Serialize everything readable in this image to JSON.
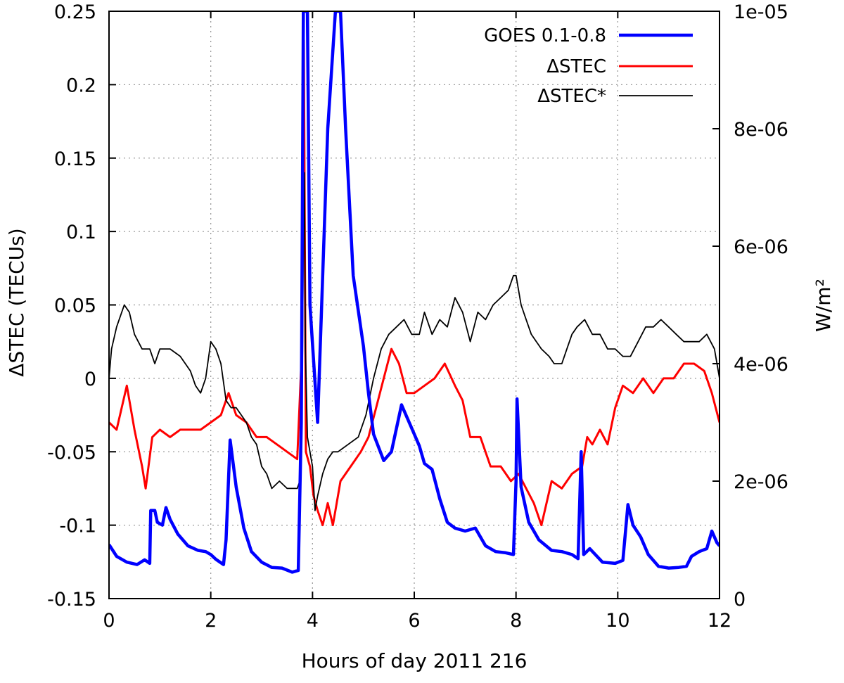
{
  "chart_data": {
    "type": "line",
    "title": "",
    "xlabel": "Hours of day 2011 216",
    "ylabel_left": "ΔSTEC (TECUs)",
    "ylabel_right": "W/m²",
    "xlim": [
      0,
      12
    ],
    "ylim_left": [
      -0.15,
      0.25
    ],
    "ylim_right": [
      0,
      1e-05
    ],
    "x_ticks": [
      "0",
      "2",
      "4",
      "6",
      "8",
      "10",
      "12"
    ],
    "y_left_ticks": [
      "0.25",
      "0.2",
      "0.15",
      "0.1",
      "0.05",
      "0",
      "-0.05",
      "-0.1",
      "-0.15"
    ],
    "y_right_ticks": [
      "1e-05",
      "8e-06",
      "6e-06",
      "4e-06",
      "2e-06",
      "0"
    ],
    "grid": true,
    "legend_position": "top-right",
    "series": [
      {
        "name": "GOES 0.1-0.8",
        "axis": "right",
        "color": "#0000ff",
        "points": [
          [
            0,
            9.2e-07
          ],
          [
            0.15,
            7.2e-07
          ],
          [
            0.35,
            6.2e-07
          ],
          [
            0.55,
            5.8e-07
          ],
          [
            0.7,
            6.6e-07
          ],
          [
            0.8,
            6e-07
          ],
          [
            0.82,
            1.5e-06
          ],
          [
            0.9,
            1.5e-06
          ],
          [
            0.95,
            1.3e-06
          ],
          [
            1.05,
            1.25e-06
          ],
          [
            1.12,
            1.55e-06
          ],
          [
            1.2,
            1.35e-06
          ],
          [
            1.35,
            1.1e-06
          ],
          [
            1.55,
            9e-07
          ],
          [
            1.75,
            8.2e-07
          ],
          [
            1.9,
            8e-07
          ],
          [
            2.0,
            7.5e-07
          ],
          [
            2.1,
            6.7e-07
          ],
          [
            2.25,
            5.8e-07
          ],
          [
            2.3,
            1e-06
          ],
          [
            2.38,
            2.7e-06
          ],
          [
            2.5,
            1.9e-06
          ],
          [
            2.65,
            1.2e-06
          ],
          [
            2.8,
            8e-07
          ],
          [
            3.0,
            6.2e-07
          ],
          [
            3.2,
            5.3e-07
          ],
          [
            3.4,
            5.2e-07
          ],
          [
            3.6,
            4.5e-07
          ],
          [
            3.72,
            4.8e-07
          ],
          [
            3.78,
            3e-06
          ],
          [
            3.82,
            1e-05
          ],
          [
            3.9,
            1e-05
          ],
          [
            3.95,
            5e-06
          ],
          [
            4.1,
            3e-06
          ],
          [
            4.3,
            8e-06
          ],
          [
            4.45,
            1e-05
          ],
          [
            4.55,
            1e-05
          ],
          [
            4.65,
            8e-06
          ],
          [
            4.8,
            5.5e-06
          ],
          [
            5.0,
            4.3e-06
          ],
          [
            5.1,
            3.5e-06
          ],
          [
            5.2,
            2.8e-06
          ],
          [
            5.4,
            2.35e-06
          ],
          [
            5.55,
            2.5e-06
          ],
          [
            5.75,
            3.3e-06
          ],
          [
            5.95,
            2.9e-06
          ],
          [
            6.1,
            2.6e-06
          ],
          [
            6.2,
            2.3e-06
          ],
          [
            6.35,
            2.2e-06
          ],
          [
            6.5,
            1.7e-06
          ],
          [
            6.65,
            1.3e-06
          ],
          [
            6.8,
            1.2e-06
          ],
          [
            7.0,
            1.15e-06
          ],
          [
            7.2,
            1.2e-06
          ],
          [
            7.4,
            9e-07
          ],
          [
            7.6,
            8e-07
          ],
          [
            7.8,
            7.8e-07
          ],
          [
            7.95,
            7.5e-07
          ],
          [
            8.0,
            2e-06
          ],
          [
            8.02,
            3.4e-06
          ],
          [
            8.1,
            1.9e-06
          ],
          [
            8.25,
            1.3e-06
          ],
          [
            8.45,
            1e-06
          ],
          [
            8.7,
            8.2e-07
          ],
          [
            8.9,
            8e-07
          ],
          [
            9.1,
            7.5e-07
          ],
          [
            9.22,
            6.8e-07
          ],
          [
            9.28,
            2.5e-06
          ],
          [
            9.33,
            7.5e-07
          ],
          [
            9.45,
            8.5e-07
          ],
          [
            9.7,
            6.2e-07
          ],
          [
            9.95,
            6e-07
          ],
          [
            10.1,
            6.5e-07
          ],
          [
            10.2,
            1.6e-06
          ],
          [
            10.3,
            1.25e-06
          ],
          [
            10.45,
            1.05e-06
          ],
          [
            10.6,
            7.5e-07
          ],
          [
            10.8,
            5.5e-07
          ],
          [
            11.0,
            5.2e-07
          ],
          [
            11.2,
            5.3e-07
          ],
          [
            11.35,
            5.5e-07
          ],
          [
            11.45,
            7.2e-07
          ],
          [
            11.6,
            8e-07
          ],
          [
            11.75,
            8.5e-07
          ],
          [
            11.85,
            1.15e-06
          ],
          [
            11.95,
            9.5e-07
          ],
          [
            12.0,
            9e-07
          ]
        ]
      },
      {
        "name": "ΔSTEC",
        "axis": "left",
        "color": "#ff0000",
        "points": [
          [
            0,
            -0.03
          ],
          [
            0.15,
            -0.035
          ],
          [
            0.35,
            -0.005
          ],
          [
            0.5,
            -0.035
          ],
          [
            0.65,
            -0.06
          ],
          [
            0.72,
            -0.075
          ],
          [
            0.85,
            -0.04
          ],
          [
            1.0,
            -0.035
          ],
          [
            1.2,
            -0.04
          ],
          [
            1.4,
            -0.035
          ],
          [
            1.6,
            -0.035
          ],
          [
            1.8,
            -0.035
          ],
          [
            2.0,
            -0.03
          ],
          [
            2.2,
            -0.025
          ],
          [
            2.35,
            -0.01
          ],
          [
            2.5,
            -0.025
          ],
          [
            2.7,
            -0.03
          ],
          [
            2.9,
            -0.04
          ],
          [
            3.1,
            -0.04
          ],
          [
            3.3,
            -0.045
          ],
          [
            3.5,
            -0.05
          ],
          [
            3.7,
            -0.055
          ],
          [
            3.78,
            0.01
          ],
          [
            3.8,
            0.06
          ],
          [
            3.83,
            0.23
          ],
          [
            3.87,
            -0.05
          ],
          [
            3.95,
            -0.06
          ],
          [
            4.02,
            -0.08
          ],
          [
            4.1,
            -0.09
          ],
          [
            4.2,
            -0.1
          ],
          [
            4.3,
            -0.085
          ],
          [
            4.4,
            -0.1
          ],
          [
            4.55,
            -0.07
          ],
          [
            4.75,
            -0.06
          ],
          [
            4.95,
            -0.05
          ],
          [
            5.1,
            -0.04
          ],
          [
            5.25,
            -0.02
          ],
          [
            5.4,
            0.0
          ],
          [
            5.55,
            0.02
          ],
          [
            5.7,
            0.01
          ],
          [
            5.85,
            -0.01
          ],
          [
            6.0,
            -0.01
          ],
          [
            6.2,
            -0.005
          ],
          [
            6.4,
            0.0
          ],
          [
            6.6,
            0.01
          ],
          [
            6.8,
            -0.005
          ],
          [
            6.95,
            -0.015
          ],
          [
            7.1,
            -0.04
          ],
          [
            7.3,
            -0.04
          ],
          [
            7.5,
            -0.06
          ],
          [
            7.7,
            -0.06
          ],
          [
            7.9,
            -0.07
          ],
          [
            8.05,
            -0.065
          ],
          [
            8.2,
            -0.075
          ],
          [
            8.35,
            -0.085
          ],
          [
            8.5,
            -0.1
          ],
          [
            8.7,
            -0.07
          ],
          [
            8.9,
            -0.075
          ],
          [
            9.1,
            -0.065
          ],
          [
            9.3,
            -0.06
          ],
          [
            9.4,
            -0.04
          ],
          [
            9.5,
            -0.045
          ],
          [
            9.65,
            -0.035
          ],
          [
            9.8,
            -0.045
          ],
          [
            9.95,
            -0.02
          ],
          [
            10.1,
            -0.005
          ],
          [
            10.3,
            -0.01
          ],
          [
            10.5,
            0.0
          ],
          [
            10.7,
            -0.01
          ],
          [
            10.9,
            0.0
          ],
          [
            11.1,
            0.0
          ],
          [
            11.3,
            0.01
          ],
          [
            11.5,
            0.01
          ],
          [
            11.7,
            0.005
          ],
          [
            11.85,
            -0.01
          ],
          [
            12.0,
            -0.03
          ]
        ]
      },
      {
        "name": "ΔSTEC*",
        "axis": "left",
        "color": "#000000",
        "points": [
          [
            0,
            0.0
          ],
          [
            0.05,
            0.02
          ],
          [
            0.15,
            0.035
          ],
          [
            0.3,
            0.05
          ],
          [
            0.4,
            0.045
          ],
          [
            0.5,
            0.03
          ],
          [
            0.65,
            0.02
          ],
          [
            0.8,
            0.02
          ],
          [
            0.9,
            0.01
          ],
          [
            1.0,
            0.02
          ],
          [
            1.2,
            0.02
          ],
          [
            1.4,
            0.015
          ],
          [
            1.6,
            0.005
          ],
          [
            1.7,
            -0.005
          ],
          [
            1.8,
            -0.01
          ],
          [
            1.9,
            0.0
          ],
          [
            2.0,
            0.025
          ],
          [
            2.1,
            0.02
          ],
          [
            2.2,
            0.01
          ],
          [
            2.3,
            -0.015
          ],
          [
            2.4,
            -0.02
          ],
          [
            2.5,
            -0.02
          ],
          [
            2.6,
            -0.025
          ],
          [
            2.7,
            -0.03
          ],
          [
            2.8,
            -0.04
          ],
          [
            2.9,
            -0.045
          ],
          [
            3.0,
            -0.06
          ],
          [
            3.1,
            -0.065
          ],
          [
            3.2,
            -0.075
          ],
          [
            3.35,
            -0.07
          ],
          [
            3.5,
            -0.075
          ],
          [
            3.6,
            -0.075
          ],
          [
            3.7,
            -0.075
          ],
          [
            3.75,
            -0.07
          ],
          [
            3.8,
            0.0
          ],
          [
            3.82,
            0.1
          ],
          [
            3.84,
            0.14
          ],
          [
            3.86,
            0.02
          ],
          [
            3.9,
            -0.04
          ],
          [
            4.0,
            -0.06
          ],
          [
            4.05,
            -0.09
          ],
          [
            4.1,
            -0.08
          ],
          [
            4.2,
            -0.065
          ],
          [
            4.3,
            -0.055
          ],
          [
            4.4,
            -0.05
          ],
          [
            4.5,
            -0.05
          ],
          [
            4.7,
            -0.045
          ],
          [
            4.9,
            -0.04
          ],
          [
            5.05,
            -0.025
          ],
          [
            5.2,
            0.0
          ],
          [
            5.35,
            0.02
          ],
          [
            5.5,
            0.03
          ],
          [
            5.65,
            0.035
          ],
          [
            5.8,
            0.04
          ],
          [
            5.95,
            0.03
          ],
          [
            6.1,
            0.03
          ],
          [
            6.2,
            0.045
          ],
          [
            6.35,
            0.03
          ],
          [
            6.5,
            0.04
          ],
          [
            6.65,
            0.035
          ],
          [
            6.8,
            0.055
          ],
          [
            6.95,
            0.045
          ],
          [
            7.1,
            0.025
          ],
          [
            7.25,
            0.045
          ],
          [
            7.4,
            0.04
          ],
          [
            7.55,
            0.05
          ],
          [
            7.7,
            0.055
          ],
          [
            7.85,
            0.06
          ],
          [
            7.95,
            0.07
          ],
          [
            8.0,
            0.07
          ],
          [
            8.1,
            0.05
          ],
          [
            8.2,
            0.04
          ],
          [
            8.3,
            0.03
          ],
          [
            8.4,
            0.025
          ],
          [
            8.5,
            0.02
          ],
          [
            8.65,
            0.015
          ],
          [
            8.75,
            0.01
          ],
          [
            8.9,
            0.01
          ],
          [
            9.0,
            0.02
          ],
          [
            9.1,
            0.03
          ],
          [
            9.2,
            0.035
          ],
          [
            9.35,
            0.04
          ],
          [
            9.5,
            0.03
          ],
          [
            9.65,
            0.03
          ],
          [
            9.8,
            0.02
          ],
          [
            9.95,
            0.02
          ],
          [
            10.1,
            0.015
          ],
          [
            10.25,
            0.015
          ],
          [
            10.4,
            0.025
          ],
          [
            10.55,
            0.035
          ],
          [
            10.7,
            0.035
          ],
          [
            10.85,
            0.04
          ],
          [
            11.0,
            0.035
          ],
          [
            11.15,
            0.03
          ],
          [
            11.3,
            0.025
          ],
          [
            11.45,
            0.025
          ],
          [
            11.6,
            0.025
          ],
          [
            11.75,
            0.03
          ],
          [
            11.9,
            0.02
          ],
          [
            12.0,
            0.0
          ]
        ]
      }
    ]
  }
}
